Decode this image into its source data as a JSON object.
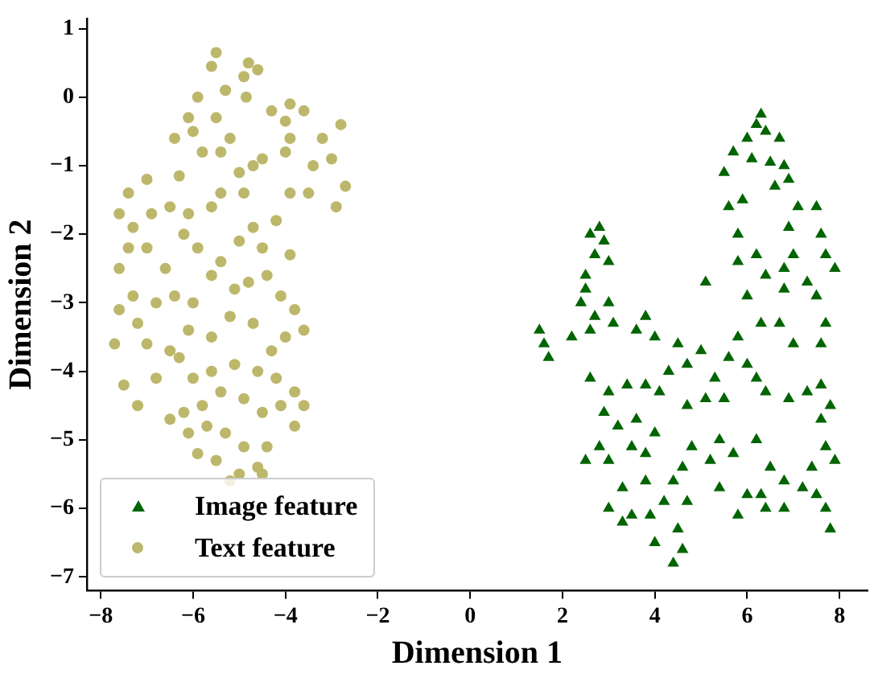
{
  "chart_data": {
    "type": "scatter",
    "xlabel": "Dimension 1",
    "ylabel": "Dimension 2",
    "xlim": [
      -8.3,
      8.6
    ],
    "ylim": [
      -7.2,
      1.15
    ],
    "xticks": [
      -8,
      -6,
      -4,
      -2,
      0,
      2,
      4,
      6,
      8
    ],
    "yticks": [
      -7,
      -6,
      -5,
      -4,
      -3,
      -2,
      -1,
      0,
      1
    ],
    "grid": false,
    "legend": "bottom left",
    "series": [
      {
        "name": "Image feature",
        "color": "#006400",
        "marker": "triangle",
        "x": [
          6.3,
          6.2,
          6.4,
          6.0,
          6.7,
          5.7,
          6.1,
          6.5,
          6.8,
          6.9,
          6.6,
          5.5,
          5.6,
          5.9,
          7.1,
          7.5,
          6.9,
          7.0,
          5.8,
          6.2,
          5.8,
          6.4,
          6.8,
          7.3,
          7.7,
          7.9,
          7.6,
          6.0,
          6.8,
          7.5,
          7.7,
          7.6,
          6.3,
          5.8,
          6.7,
          7.0,
          6.0,
          5.6,
          5.3,
          5.1,
          4.7,
          5.5,
          6.2,
          6.4,
          6.9,
          7.3,
          7.6,
          7.8,
          7.6,
          7.7,
          7.9,
          7.4,
          7.5,
          7.7,
          7.8,
          7.2,
          6.8,
          6.5,
          6.3,
          6.0,
          5.8,
          6.4,
          6.8,
          5.4,
          5.2,
          5.4,
          5.7,
          6.2,
          4.8,
          4.6,
          4.4,
          4.7,
          4.5,
          4.6,
          4.4,
          4.0,
          4.2,
          3.9,
          3.5,
          3.3,
          3.0,
          3.8,
          3.3,
          3.0,
          3.5,
          3.8,
          4.0,
          3.6,
          3.2,
          2.8,
          2.5,
          2.9,
          3.0,
          2.6,
          3.4,
          3.8,
          4.1,
          4.3,
          4.7,
          4.5,
          5.0,
          4.0,
          3.6,
          3.1,
          2.6,
          2.2,
          2.4,
          2.7,
          3.0,
          1.5,
          1.6,
          1.7,
          2.5,
          2.7,
          2.9,
          2.8,
          2.6,
          3.0,
          2.5,
          5.1,
          3.8
        ],
        "values": [
          -0.25,
          -0.4,
          -0.5,
          -0.6,
          -0.6,
          -0.8,
          -0.9,
          -0.95,
          -1.0,
          -1.2,
          -1.3,
          -1.1,
          -1.6,
          -1.5,
          -1.6,
          -1.6,
          -1.9,
          -2.3,
          -2.0,
          -2.3,
          -2.4,
          -2.6,
          -2.5,
          -2.7,
          -2.3,
          -2.5,
          -2.0,
          -2.9,
          -2.8,
          -2.9,
          -3.3,
          -3.6,
          -3.3,
          -3.5,
          -3.3,
          -3.6,
          -3.9,
          -3.8,
          -4.1,
          -4.4,
          -4.5,
          -4.4,
          -4.1,
          -4.3,
          -4.4,
          -4.3,
          -4.2,
          -4.5,
          -4.7,
          -5.1,
          -5.3,
          -5.4,
          -5.8,
          -6.0,
          -6.3,
          -5.7,
          -5.6,
          -5.4,
          -5.8,
          -5.8,
          -6.1,
          -6.0,
          -6.0,
          -5.7,
          -5.3,
          -5.0,
          -5.2,
          -5.0,
          -5.1,
          -5.4,
          -5.6,
          -5.9,
          -6.3,
          -6.6,
          -6.8,
          -6.5,
          -5.9,
          -6.1,
          -6.1,
          -6.2,
          -6.0,
          -5.6,
          -5.7,
          -5.3,
          -5.1,
          -5.2,
          -4.9,
          -4.7,
          -4.8,
          -5.1,
          -5.3,
          -4.6,
          -4.3,
          -4.1,
          -4.2,
          -4.2,
          -4.3,
          -4.0,
          -3.9,
          -3.6,
          -3.7,
          -3.5,
          -3.4,
          -3.3,
          -3.4,
          -3.5,
          -3.0,
          -3.2,
          -3.0,
          -3.4,
          -3.6,
          -3.8,
          -2.6,
          -2.3,
          -2.1,
          -1.9,
          -2.0,
          -2.4,
          -2.8,
          -2.7,
          -3.2
        ]
      },
      {
        "name": "Text feature",
        "color": "#bdb76b",
        "marker": "circle",
        "x": [
          -5.5,
          -5.6,
          -4.8,
          -4.6,
          -4.9,
          -5.3,
          -4.85,
          -5.9,
          -6.1,
          -6.4,
          -6.0,
          -5.5,
          -5.2,
          -4.3,
          -3.9,
          -4.0,
          -3.6,
          -3.9,
          -3.2,
          -2.8,
          -3.4,
          -3.0,
          -2.7,
          -2.9,
          -3.5,
          -3.9,
          -4.0,
          -4.5,
          -4.7,
          -5.0,
          -5.4,
          -5.8,
          -6.3,
          -7.0,
          -7.4,
          -7.6,
          -7.3,
          -6.9,
          -6.5,
          -6.1,
          -5.6,
          -5.4,
          -4.9,
          -4.7,
          -4.2,
          -3.9,
          -4.5,
          -5.0,
          -5.4,
          -5.9,
          -6.2,
          -6.6,
          -7.0,
          -7.4,
          -7.6,
          -7.3,
          -7.6,
          -7.2,
          -7.0,
          -7.7,
          -7.5,
          -7.2,
          -6.8,
          -6.5,
          -6.8,
          -6.4,
          -6.0,
          -5.6,
          -5.1,
          -4.8,
          -4.4,
          -4.1,
          -3.8,
          -4.0,
          -3.6,
          -4.3,
          -4.7,
          -5.2,
          -5.6,
          -6.1,
          -6.3,
          -6.0,
          -5.6,
          -5.1,
          -4.6,
          -4.2,
          -3.8,
          -3.6,
          -3.8,
          -4.1,
          -4.5,
          -4.9,
          -5.4,
          -5.8,
          -6.2,
          -6.5,
          -6.1,
          -5.7,
          -5.3,
          -4.9,
          -4.4,
          -4.6,
          -5.0,
          -5.2,
          -5.5,
          -5.9,
          -4.5
        ],
        "values": [
          0.65,
          0.45,
          0.5,
          0.4,
          0.3,
          0.1,
          0,
          0,
          -0.3,
          -0.6,
          -0.5,
          -0.3,
          -0.6,
          -0.2,
          -0.1,
          -0.35,
          -0.2,
          -0.6,
          -0.6,
          -0.4,
          -1.0,
          -0.9,
          -1.3,
          -1.6,
          -1.4,
          -1.4,
          -0.8,
          -0.9,
          -1.0,
          -1.1,
          -0.8,
          -0.8,
          -1.15,
          -1.2,
          -1.4,
          -1.7,
          -1.9,
          -1.7,
          -1.6,
          -1.7,
          -1.6,
          -1.4,
          -1.4,
          -1.9,
          -1.8,
          -2.3,
          -2.2,
          -2.1,
          -2.4,
          -2.2,
          -2.0,
          -2.5,
          -2.2,
          -2.2,
          -2.5,
          -2.9,
          -3.1,
          -3.3,
          -3.6,
          -3.6,
          -4.2,
          -4.5,
          -4.1,
          -3.7,
          -3.0,
          -2.9,
          -3.0,
          -2.6,
          -2.8,
          -2.7,
          -2.6,
          -2.9,
          -3.1,
          -3.5,
          -3.4,
          -3.7,
          -3.3,
          -3.2,
          -3.5,
          -3.4,
          -3.8,
          -4.1,
          -4.0,
          -3.9,
          -4.0,
          -4.1,
          -4.3,
          -4.5,
          -4.8,
          -4.5,
          -4.6,
          -4.4,
          -4.3,
          -4.5,
          -4.6,
          -4.7,
          -4.9,
          -4.8,
          -4.9,
          -5.1,
          -5.1,
          -5.4,
          -5.5,
          -5.6,
          -5.3,
          -5.2,
          -5.5
        ]
      }
    ]
  }
}
